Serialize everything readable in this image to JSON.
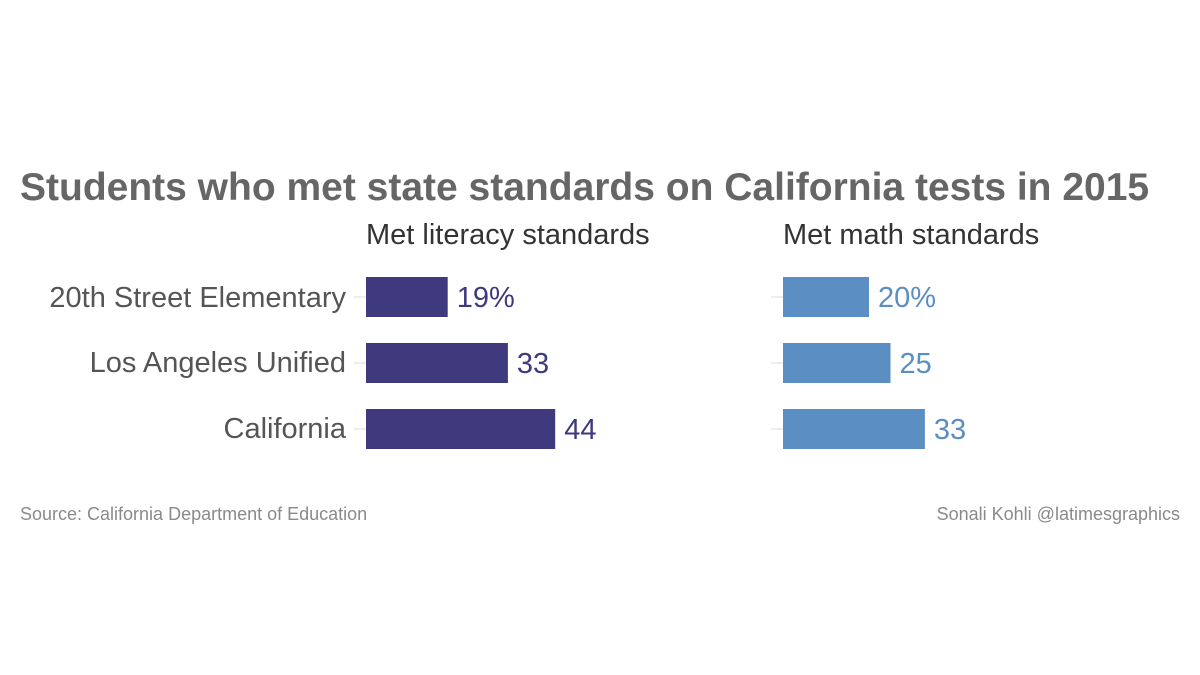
{
  "chart_data": {
    "type": "bar",
    "orientation": "horizontal",
    "title": "Students who met state standards on California tests in 2015",
    "categories": [
      "20th Street Elementary",
      "Los Angeles Unified",
      "California"
    ],
    "series": [
      {
        "name": "Met literacy standards",
        "values": [
          19,
          33,
          44
        ],
        "value_labels": [
          "19%",
          "33",
          "44"
        ],
        "color": "#3e3a7d"
      },
      {
        "name": "Met math standards",
        "values": [
          20,
          25,
          33
        ],
        "value_labels": [
          "20%",
          "25",
          "33"
        ],
        "color": "#5b8ec2"
      }
    ],
    "unit": "%",
    "xlim": [
      0,
      100
    ],
    "grid": false,
    "legend": "none"
  },
  "footer": {
    "source": "Source: California Department of Education",
    "credit": "Sonali Kohli @latimesgraphics"
  },
  "colors": {
    "title": "#666666",
    "labels": "#555555",
    "footer": "#8a8a8a"
  }
}
